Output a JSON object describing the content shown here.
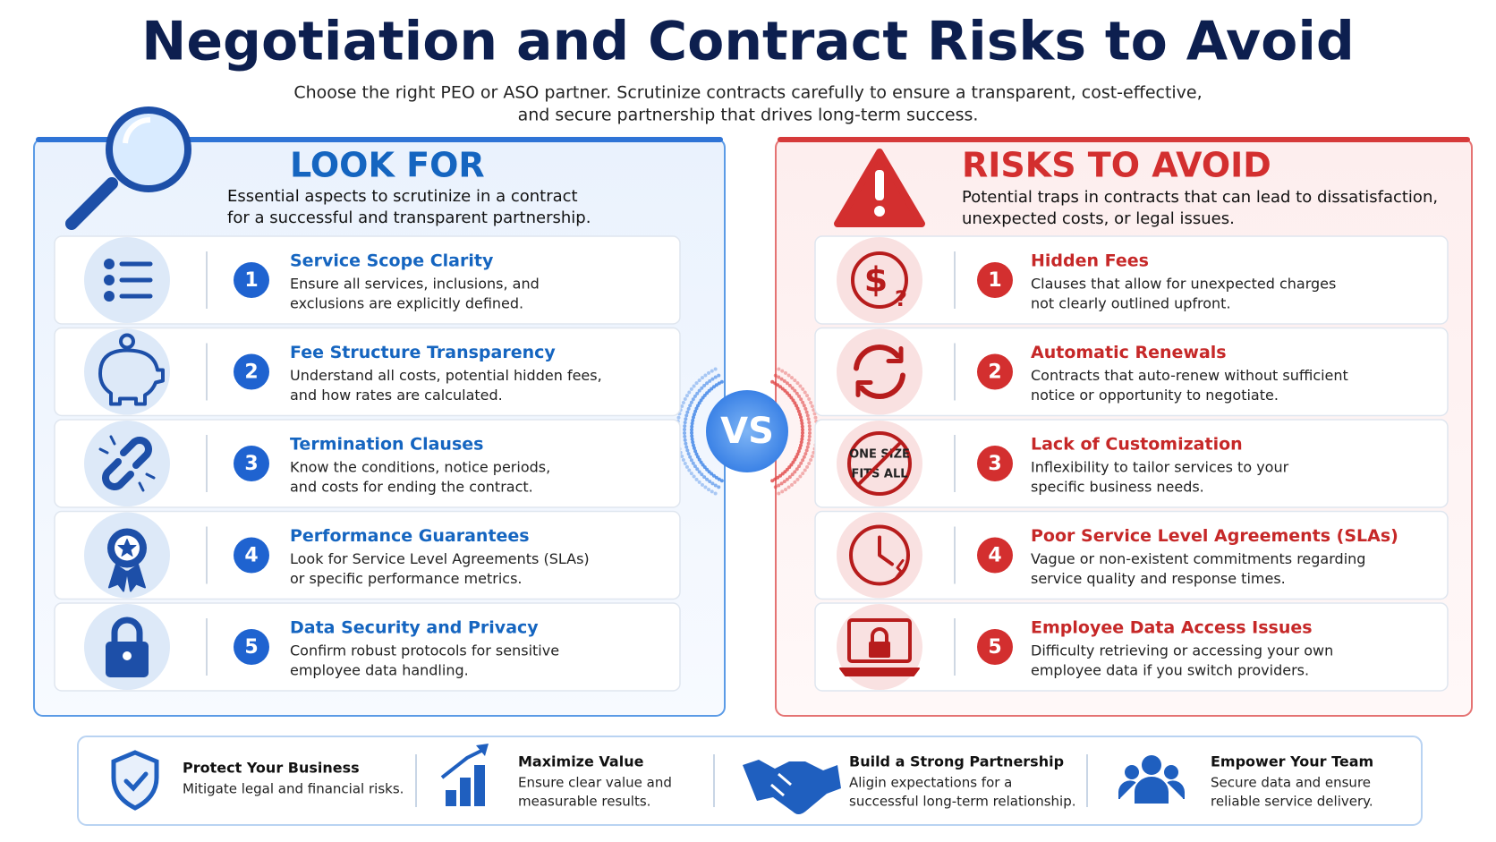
{
  "header": {
    "title": "Negotiation and Contract Risks to Avoid",
    "subtitle": [
      "Choose the right PEO or ASO partner. Scrutinize contracts carefully to ensure a transparent, cost-effective,",
      "and secure partnership that drives long-term success."
    ]
  },
  "look_for": {
    "heading": "LOOK FOR",
    "description": [
      "Essential aspects to scrutinize in a contract",
      "for a successful and transparent partnership."
    ],
    "items": [
      {
        "number": 1,
        "title": "Service Scope Clarity",
        "description": [
          "Ensure all services, inclusions, and",
          "exclusions are explicitly defined."
        ]
      },
      {
        "number": 2,
        "title": "Fee Structure Transparency",
        "description": [
          "Understand all costs, potential hidden fees,",
          "and how rates are calculated."
        ]
      },
      {
        "number": 3,
        "title": "Termination Clauses",
        "description": [
          "Know the conditions, notice periods,",
          "and costs for ending the contract."
        ]
      },
      {
        "number": 4,
        "title": "Performance Guarantees",
        "description": [
          "Look for Service Level Agreements (SLAs)",
          "or specific performance metrics."
        ]
      },
      {
        "number": 5,
        "title": "Data Security and Privacy",
        "description": [
          "Confirm robust protocols for sensitive",
          "employee data handling."
        ]
      }
    ]
  },
  "vs": "VS",
  "risks": {
    "heading": "RISKS TO AVOID",
    "description": [
      "Potential traps in contracts that can lead to dissatisfaction,",
      "unexpected costs, or legal issues."
    ],
    "items": [
      {
        "number": 1,
        "title": "Hidden Fees",
        "description": [
          "Clauses that allow for unexpected charges",
          "not clearly outlined upfront."
        ]
      },
      {
        "number": 2,
        "title": "Automatic Renewals",
        "description": [
          "Contracts that auto-renew without sufficient",
          "notice or opportunity to negotiate."
        ]
      },
      {
        "number": 3,
        "title": "Lack of Customization",
        "description": [
          "Inflexibility to tailor services to your",
          "specific business needs."
        ],
        "icon_text": [
          "ONE SIZE",
          "FITS ALL"
        ]
      },
      {
        "number": 4,
        "title": "Poor Service Level Agreements (SLAs)",
        "description": [
          "Vague or non-existent commitments regarding",
          "service quality and response times."
        ]
      },
      {
        "number": 5,
        "title": "Employee Data Access Issues",
        "description": [
          "Difficulty retrieving or accessing your own",
          "employee data if you switch providers."
        ]
      }
    ]
  },
  "footer": [
    {
      "title": "Protect Your Business",
      "description": [
        "Mitigate legal and financial risks."
      ]
    },
    {
      "title": "Maximize Value",
      "description": [
        "Ensure clear value and",
        "measurable results."
      ]
    },
    {
      "title": "Build a Strong Partnership",
      "description": [
        "Aligin expectations for a",
        "successful long-term relationship."
      ]
    },
    {
      "title": "Empower Your Team",
      "description": [
        "Secure data and ensure",
        "reliable service delivery."
      ]
    }
  ]
}
